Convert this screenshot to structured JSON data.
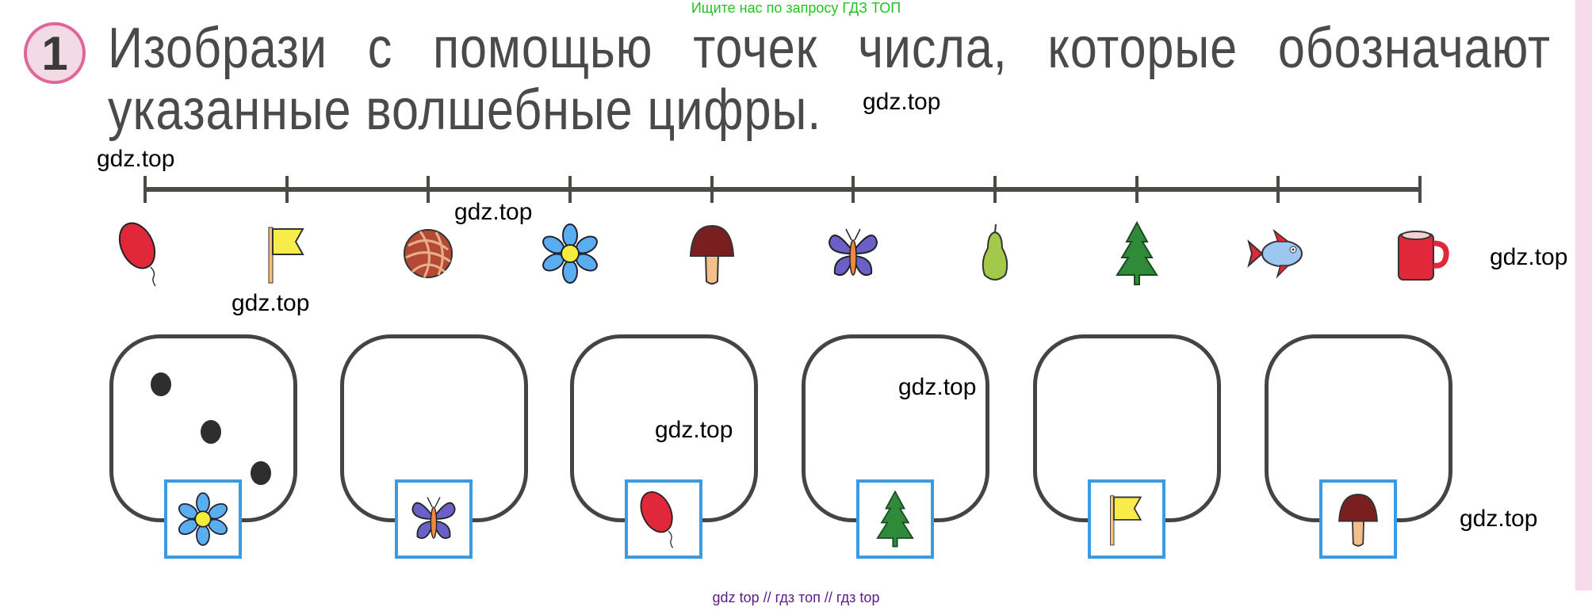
{
  "watermark_top": "Ищите нас по запросу ГДЗ ТОП",
  "watermark_bottom": "gdz top  //  гдз топ  //  гдз top",
  "task_number": "1",
  "title_line1_words": [
    "Изобрази",
    "с",
    "помощью",
    "точек",
    "числа,",
    "которые",
    "обозначают"
  ],
  "title_line2": "указанные волшебные цифры.",
  "overlay_watermarks": [
    "gdz.top",
    "gdz.top",
    "gdz.top",
    "gdz.top",
    "gdz.top",
    "gdz.top",
    "gdz.top",
    "gdz.top"
  ],
  "number_line": {
    "tick_count": 10,
    "icons": [
      "balloon-icon",
      "flag-icon",
      "yarn-ball-icon",
      "flower-icon",
      "mushroom-icon",
      "butterfly-icon",
      "pear-icon",
      "fir-tree-icon",
      "fish-icon",
      "mug-icon"
    ]
  },
  "answer_boxes": [
    {
      "icon": "flower-icon",
      "dots": 3
    },
    {
      "icon": "butterfly-icon",
      "dots": 0
    },
    {
      "icon": "balloon-icon",
      "dots": 0
    },
    {
      "icon": "fir-tree-icon",
      "dots": 0
    },
    {
      "icon": "flag-icon",
      "dots": 0
    },
    {
      "icon": "mushroom-icon",
      "dots": 0
    }
  ],
  "colors": {
    "accent_pink": "#e0669a",
    "frame_blue": "#3a9be0",
    "watermark_green": "#22c322",
    "watermark_purple": "#5a1a8c"
  }
}
